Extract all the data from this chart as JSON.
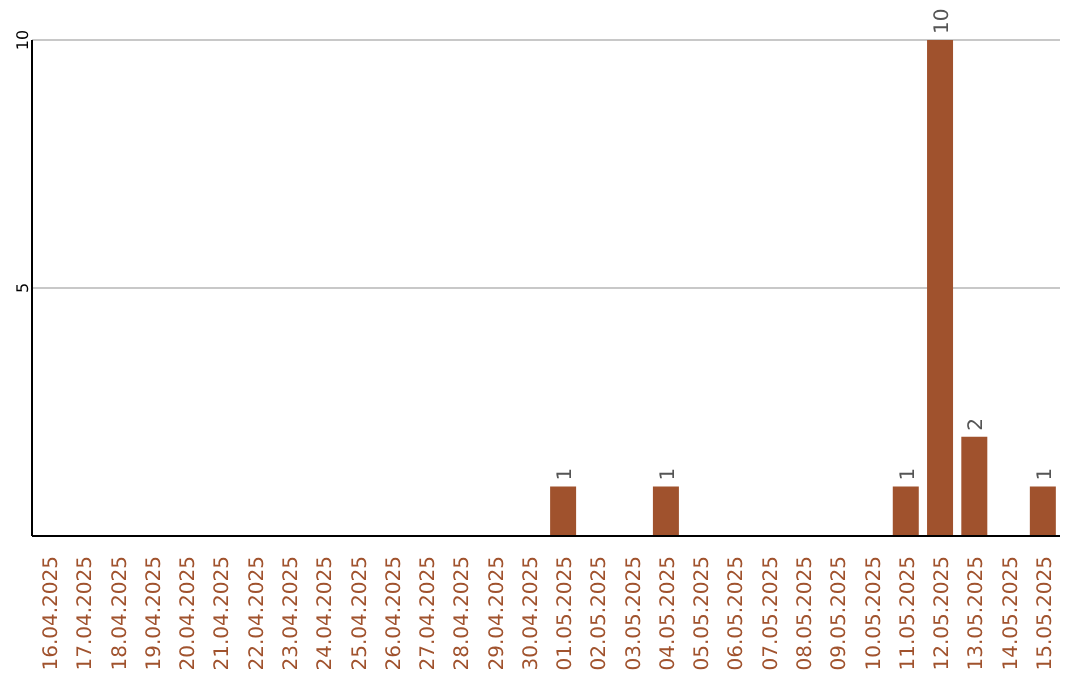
{
  "chart_data": {
    "type": "bar",
    "categories": [
      "16.04.2025",
      "17.04.2025",
      "18.04.2025",
      "19.04.2025",
      "20.04.2025",
      "21.04.2025",
      "22.04.2025",
      "23.04.2025",
      "24.04.2025",
      "25.04.2025",
      "26.04.2025",
      "27.04.2025",
      "28.04.2025",
      "29.04.2025",
      "30.04.2025",
      "01.05.2025",
      "02.05.2025",
      "03.05.2025",
      "04.05.2025",
      "05.05.2025",
      "06.05.2025",
      "07.05.2025",
      "08.05.2025",
      "09.05.2025",
      "10.05.2025",
      "11.05.2025",
      "12.05.2025",
      "13.05.2025",
      "14.05.2025",
      "15.05.2025"
    ],
    "values": [
      0,
      0,
      0,
      0,
      0,
      0,
      0,
      0,
      0,
      0,
      0,
      0,
      0,
      0,
      0,
      1,
      0,
      0,
      1,
      0,
      0,
      0,
      0,
      0,
      0,
      1,
      10,
      2,
      0,
      1
    ],
    "value_labels": [
      null,
      null,
      null,
      null,
      null,
      null,
      null,
      null,
      null,
      null,
      null,
      null,
      null,
      null,
      null,
      "1",
      null,
      null,
      "1",
      null,
      null,
      null,
      null,
      null,
      null,
      "1",
      "10",
      "2",
      null,
      "1"
    ],
    "color": "#a0522d",
    "ylim": [
      0,
      10
    ],
    "yticks": [
      {
        "value": 0,
        "label": null
      },
      5,
      10
    ],
    "grid": "y"
  }
}
